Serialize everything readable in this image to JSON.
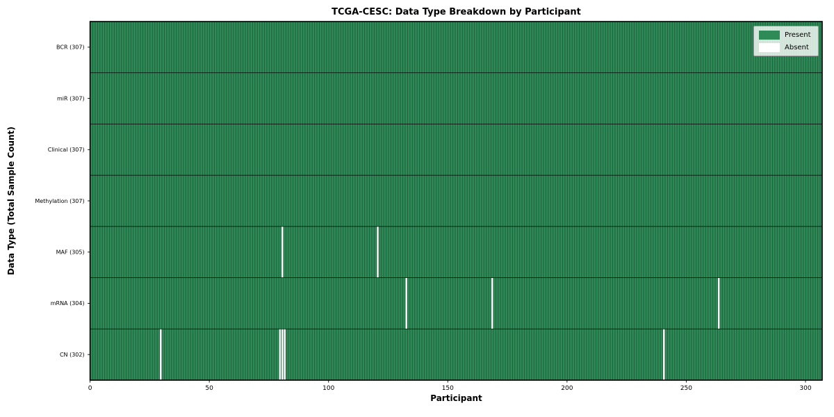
{
  "header": {
    "title": "TCGA-CESC: Data Type Breakdown by Participant"
  },
  "chart_data": {
    "type": "heatmap",
    "title": "TCGA-CESC: Data Type Breakdown by Participant",
    "xlabel": "Participant",
    "ylabel": "Data Type (Total Sample Count)",
    "x_ticks": [
      0,
      50,
      100,
      150,
      200,
      250,
      300
    ],
    "x_range": [
      0,
      307
    ],
    "n_participants": 307,
    "grid": false,
    "legend_position": "upper right",
    "legend": [
      {
        "label": "Present",
        "color": "#2e8b57"
      },
      {
        "label": "Absent",
        "color": "#ffffff"
      }
    ],
    "rows": [
      {
        "label": "BCR (307)",
        "data_type": "BCR",
        "present_count": 307,
        "absent_participants": []
      },
      {
        "label": "miR (307)",
        "data_type": "miR",
        "present_count": 307,
        "absent_participants": []
      },
      {
        "label": "Clinical (307)",
        "data_type": "Clinical",
        "present_count": 307,
        "absent_participants": []
      },
      {
        "label": "Methylation (307)",
        "data_type": "Methylation",
        "present_count": 307,
        "absent_participants": []
      },
      {
        "label": "MAF (305)",
        "data_type": "MAF",
        "present_count": 305,
        "absent_participants": [
          80,
          120
        ]
      },
      {
        "label": "mRNA (304)",
        "data_type": "mRNA",
        "present_count": 304,
        "absent_participants": [
          132,
          168,
          263
        ]
      },
      {
        "label": "CN (302)",
        "data_type": "CN",
        "present_count": 302,
        "absent_participants": [
          29,
          79,
          80,
          81,
          240
        ]
      }
    ],
    "colors": {
      "present": "#2e8b57",
      "absent": "#ffffff",
      "cell_edge": "rgba(0,0,0,0.35)",
      "row_border": "rgba(0,0,0,0.85)",
      "plot_border": "#000000",
      "legend_border": "#9a9a9a",
      "legend_bg": "rgba(255,255,255,0.8)",
      "text": "#000000"
    }
  }
}
